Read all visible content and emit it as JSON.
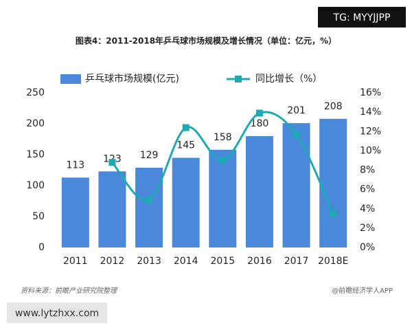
{
  "chart_data": {
    "type": "bar_line",
    "title": "图表4：2011-2018年乒乓球市场规模及增长情况（单位：亿元，%）",
    "categories": [
      "2011",
      "2012",
      "2013",
      "2014",
      "2015",
      "2016",
      "2017",
      "2018E"
    ],
    "series": [
      {
        "name": "乒乓球市场规模(亿元)",
        "color": "#4a88db",
        "type": "bar",
        "values": [
          113,
          123,
          129,
          145,
          158,
          180,
          201,
          208
        ]
      },
      {
        "name": "同比增长（%）",
        "color": "#1fa9b3",
        "type": "line",
        "axis": "y2",
        "values": [
          null,
          8.8,
          4.9,
          12.4,
          9.0,
          13.9,
          11.7,
          3.5
        ]
      }
    ],
    "ylim": [
      0,
      250
    ],
    "yticks": [
      0,
      50,
      100,
      150,
      200,
      250
    ],
    "y2lim": [
      0,
      16
    ],
    "y2ticks": [
      {
        "value": 0,
        "label": "0%"
      },
      {
        "value": 2,
        "label": "2%"
      },
      {
        "value": 4,
        "label": "4%"
      },
      {
        "value": 6,
        "label": "6%"
      },
      {
        "value": 8,
        "label": "8%"
      },
      {
        "value": 10,
        "label": "10%"
      },
      {
        "value": 12,
        "label": "12%"
      },
      {
        "value": 14,
        "label": "14%"
      },
      {
        "value": 16,
        "label": "16%"
      }
    ],
    "source": "资料来源：前瞻产业研究院整理",
    "credit": "@前瞻经济学人APP",
    "watermarks": [
      "TG: MYYJJPP",
      "www.lytzhxx.com"
    ]
  }
}
